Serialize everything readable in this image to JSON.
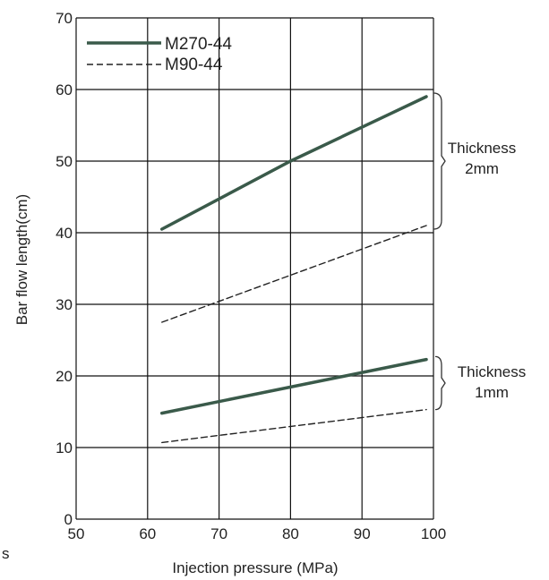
{
  "chart_data": {
    "type": "line",
    "xlabel": "Injection pressure (MPa)",
    "ylabel": "Bar flow length(cm)",
    "xlim": [
      50,
      100
    ],
    "ylim": [
      0,
      70
    ],
    "xticks": [
      50,
      60,
      70,
      80,
      90,
      100
    ],
    "yticks": [
      0,
      10,
      20,
      30,
      40,
      50,
      60,
      70
    ],
    "grid": true,
    "legend_position": "top-left",
    "series": [
      {
        "name": "M270-44",
        "style": "solid",
        "color": "#3a5a4a",
        "group": "2mm",
        "x": [
          62,
          80,
          99
        ],
        "y": [
          40.5,
          50,
          59
        ]
      },
      {
        "name": "M90-44",
        "style": "dashed",
        "color": "#222222",
        "group": "2mm",
        "x": [
          62,
          99
        ],
        "y": [
          27.5,
          41
        ]
      },
      {
        "name": "M270-44",
        "style": "solid",
        "color": "#3a5a4a",
        "group": "1mm",
        "x": [
          62,
          99
        ],
        "y": [
          14.8,
          22.3
        ]
      },
      {
        "name": "M90-44",
        "style": "dashed",
        "color": "#222222",
        "group": "1mm",
        "x": [
          62,
          99
        ],
        "y": [
          10.7,
          15.3
        ]
      }
    ],
    "legend": [
      {
        "label": "M270-44",
        "style": "solid",
        "color": "#3a5a4a"
      },
      {
        "label": "M90-44",
        "style": "dashed",
        "color": "#222222"
      }
    ],
    "annotations": [
      {
        "lines": [
          "Thickness",
          "2mm"
        ],
        "y_range": [
          40.5,
          59.5
        ]
      },
      {
        "lines": [
          "Thickness",
          "1mm"
        ],
        "y_range": [
          15.3,
          22.7
        ]
      }
    ],
    "stray_text": "s"
  }
}
